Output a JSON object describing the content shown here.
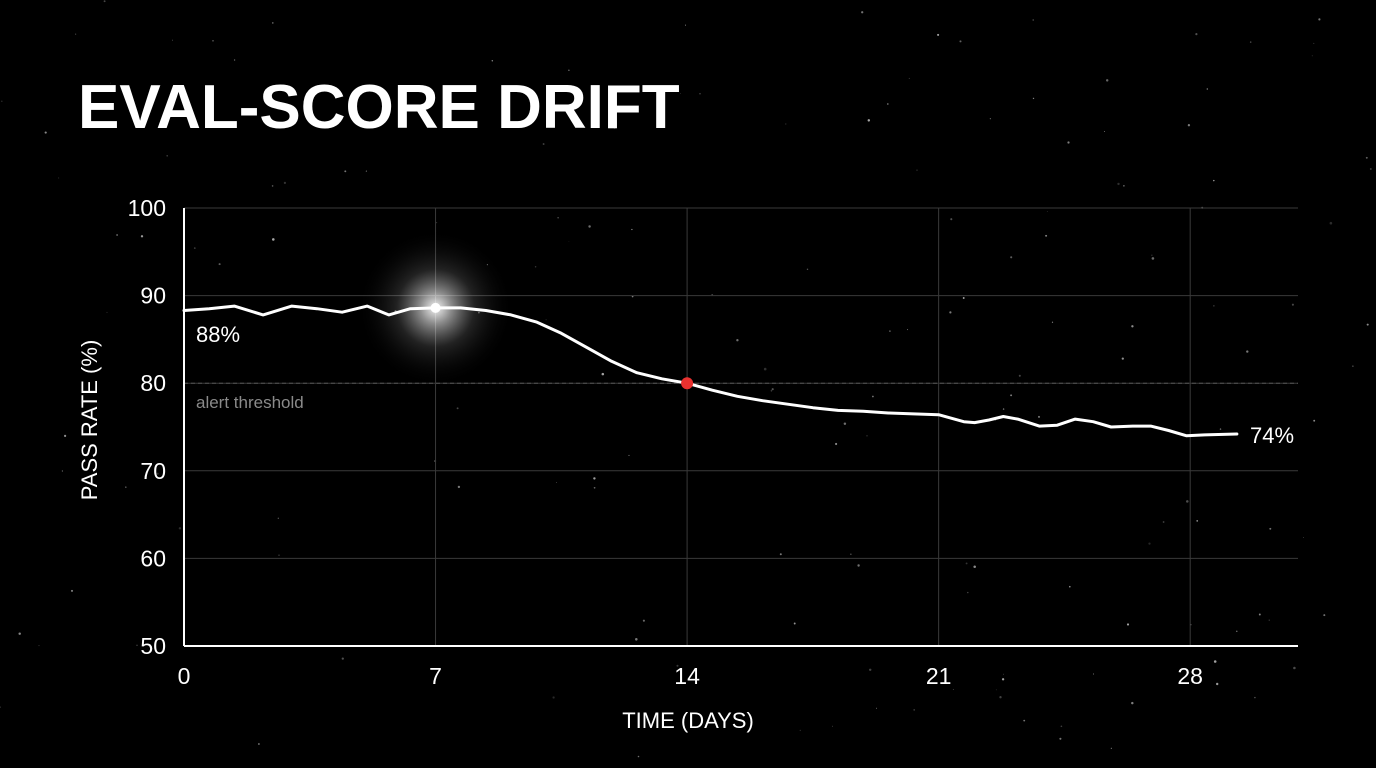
{
  "colors": {
    "background": "#000000",
    "line": "#ffffff",
    "grid": "#3a3a3a",
    "threshold": "#555555",
    "crossing_marker": "#e8312f"
  },
  "chart_data": {
    "type": "line",
    "title": "EVAL-SCORE DRIFT",
    "xlabel": "TIME (DAYS)",
    "ylabel": "PASS RATE (%)",
    "xlim": [
      0,
      31
    ],
    "ylim": [
      50,
      100
    ],
    "x_ticks": [
      0,
      7,
      14,
      21,
      28
    ],
    "y_ticks": [
      50,
      60,
      70,
      80,
      90,
      100
    ],
    "grid": true,
    "series": [
      {
        "x": [
          0,
          0.7,
          1.4,
          2.2,
          3.0,
          3.7,
          4.4,
          5.1,
          5.7,
          6.3,
          7.0,
          7.7,
          8.4,
          9.1,
          9.8,
          10.5,
          11.2,
          11.9,
          12.6,
          13.3,
          14.0,
          14.7,
          15.4,
          16.1,
          16.8,
          17.5,
          18.2,
          18.9,
          19.6,
          20.3,
          21.0,
          21.7,
          22.0,
          22.4,
          22.8,
          23.2,
          23.8,
          24.3,
          24.8,
          25.3,
          25.8,
          26.4,
          26.9,
          27.4,
          27.9,
          28.4,
          29.3
        ],
        "y": [
          88.3,
          88.5,
          88.8,
          87.8,
          88.8,
          88.5,
          88.1,
          88.8,
          87.8,
          88.5,
          88.6,
          88.6,
          88.3,
          87.8,
          87.0,
          85.7,
          84.1,
          82.5,
          81.2,
          80.5,
          80.0,
          79.2,
          78.5,
          78.0,
          77.6,
          77.2,
          76.9,
          76.8,
          76.6,
          76.5,
          76.4,
          75.6,
          75.5,
          75.8,
          76.2,
          75.9,
          75.1,
          75.2,
          75.9,
          75.6,
          75.0,
          75.1,
          75.1,
          74.6,
          74.0,
          74.1,
          74.2
        ]
      }
    ],
    "threshold": {
      "value": 80,
      "label": "alert threshold"
    },
    "highlight_point": {
      "x": 7.0,
      "y": 88.6
    },
    "crossing_point": {
      "x": 14.0,
      "y": 80.0
    },
    "start_label": "88%",
    "end_label": "74%"
  }
}
